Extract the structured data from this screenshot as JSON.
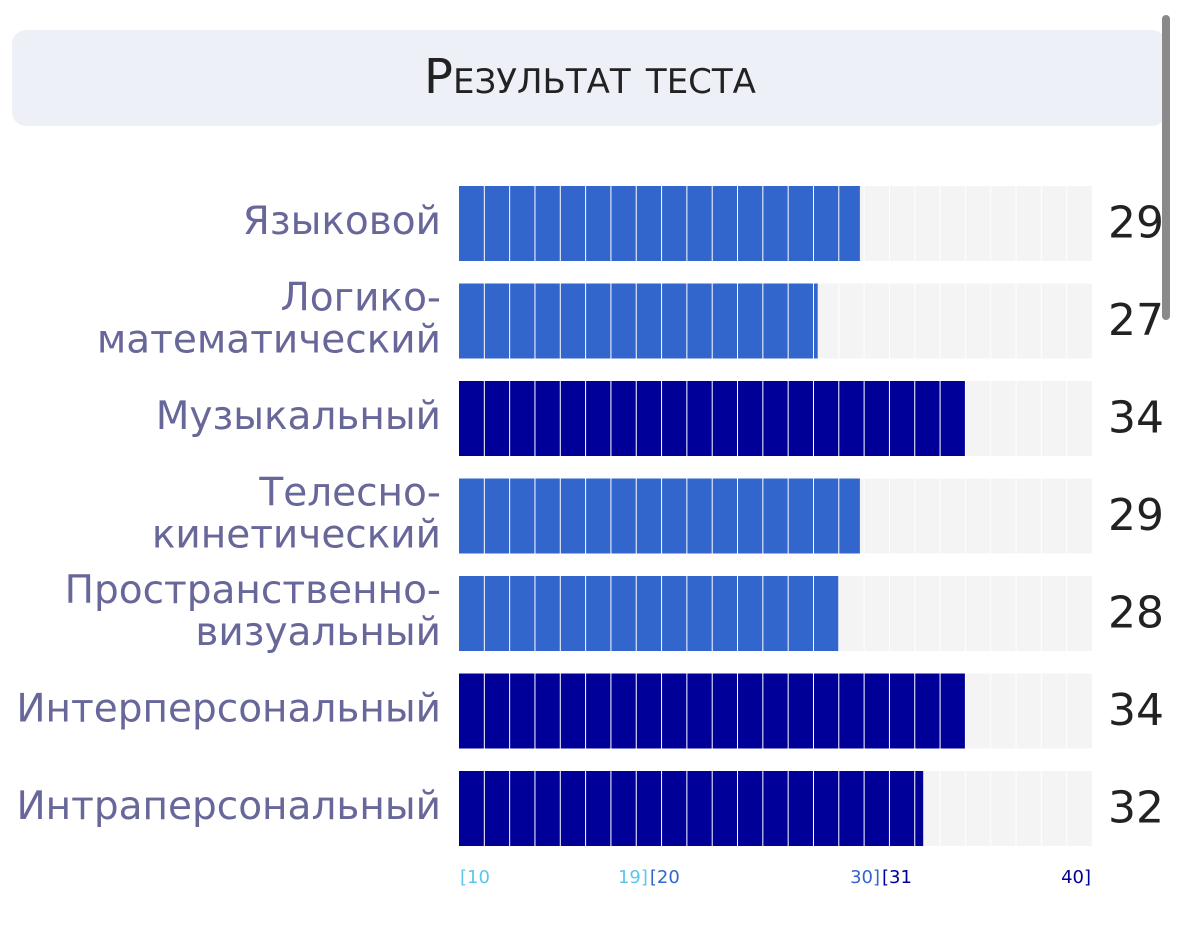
{
  "chart_data": {
    "type": "bar",
    "orientation": "horizontal",
    "title": "Результат теста",
    "categories": [
      [
        "Языковой"
      ],
      [
        "Логико-",
        "математический"
      ],
      [
        "Музыкальный"
      ],
      [
        "Телесно-",
        "кинетический"
      ],
      [
        "Пространственно-",
        "визуальный"
      ],
      [
        "Интерперсональный"
      ],
      [
        "Интраперсональный"
      ]
    ],
    "values": [
      29,
      27,
      34,
      29,
      28,
      34,
      32
    ],
    "xlim": [
      10,
      40
    ],
    "ranges": [
      {
        "from": 10,
        "to": 19,
        "start_label": "[10",
        "end_label": "19]",
        "color": "#5bc8e8"
      },
      {
        "from": 20,
        "to": 30,
        "start_label": "[20",
        "end_label": "30]",
        "color": "#3366cc"
      },
      {
        "from": 31,
        "to": 40,
        "start_label": "[31",
        "end_label": "40]",
        "color": "#000099"
      }
    ]
  }
}
